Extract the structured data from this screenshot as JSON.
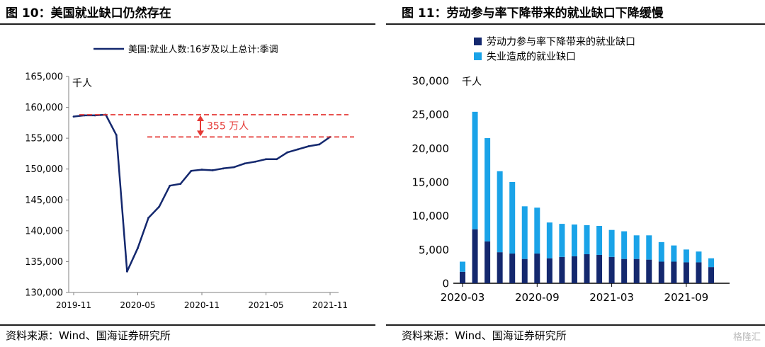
{
  "left": {
    "title": "图 10：美国就业缺口仍然存在",
    "source": "资料来源：Wind、国海证券研究所",
    "chart_data": {
      "type": "line",
      "title": "图 10：美国就业缺口仍然存在",
      "ylabel": "千人",
      "ylim": [
        130000,
        165000
      ],
      "y_ticks": [
        "130,000",
        "135,000",
        "140,000",
        "145,000",
        "150,000",
        "155,000",
        "160,000",
        "165,000"
      ],
      "x_ticks": [
        "2019-11",
        "2020-05",
        "2020-11",
        "2021-05",
        "2021-11"
      ],
      "legend_position": "top",
      "grid": false,
      "series": [
        {
          "name": "美国:就业人数:16岁及以上总计:季调",
          "color": "#14286e",
          "x": [
            "2019-11",
            "2019-12",
            "2020-01",
            "2020-02",
            "2020-03",
            "2020-04",
            "2020-05",
            "2020-06",
            "2020-07",
            "2020-08",
            "2020-09",
            "2020-10",
            "2020-11",
            "2020-12",
            "2021-01",
            "2021-02",
            "2021-03",
            "2021-04",
            "2021-05",
            "2021-06",
            "2021-07",
            "2021-08",
            "2021-09",
            "2021-10",
            "2021-11"
          ],
          "values": [
            158500,
            158700,
            158700,
            158800,
            155500,
            133400,
            137200,
            142100,
            143900,
            147300,
            147600,
            149700,
            149900,
            149800,
            150100,
            150300,
            150900,
            151200,
            151600,
            151600,
            152700,
            153200,
            153700,
            154000,
            155200
          ]
        }
      ],
      "annotation": {
        "label": "355 万人",
        "y_upper": 158800,
        "y_lower": 155200,
        "color": "#e53935"
      }
    }
  },
  "right": {
    "title": "图 11：劳动参与率下降带来的就业缺口下降缓慢",
    "source": "资料来源：Wind、国海证券研究所",
    "chart_data": {
      "type": "bar",
      "stacked": true,
      "title": "图 11：劳动参与率下降带来的就业缺口下降缓慢",
      "ylabel": "千人",
      "ylim": [
        0,
        30000
      ],
      "y_ticks": [
        "0",
        "5,000",
        "10,000",
        "15,000",
        "20,000",
        "25,000",
        "30,000"
      ],
      "x_ticks": [
        "2020-03",
        "2020-09",
        "2021-03",
        "2021-09"
      ],
      "legend_position": "top-left",
      "grid": false,
      "categories": [
        "2020-03",
        "2020-04",
        "2020-05",
        "2020-06",
        "2020-07",
        "2020-08",
        "2020-09",
        "2020-10",
        "2020-11",
        "2020-12",
        "2021-01",
        "2021-02",
        "2021-03",
        "2021-04",
        "2021-05",
        "2021-06",
        "2021-07",
        "2021-08",
        "2021-09",
        "2021-10",
        "2021-11"
      ],
      "series": [
        {
          "name": "劳动力参与率下降带来的就业缺口",
          "color": "#14286e",
          "values": [
            1700,
            8000,
            6200,
            4600,
            4400,
            3600,
            4400,
            3700,
            3900,
            4000,
            4300,
            4200,
            3900,
            3600,
            3600,
            3500,
            3200,
            3200,
            3100,
            3100,
            2400
          ]
        },
        {
          "name": "失业造成的就业缺口",
          "color": "#1aa3e8",
          "values": [
            1500,
            17400,
            15300,
            12000,
            10600,
            7800,
            6800,
            5300,
            4900,
            4700,
            4300,
            4300,
            4000,
            4100,
            3500,
            3600,
            2900,
            2400,
            1900,
            1600,
            1300
          ]
        }
      ]
    }
  },
  "watermark": "格隆汇"
}
